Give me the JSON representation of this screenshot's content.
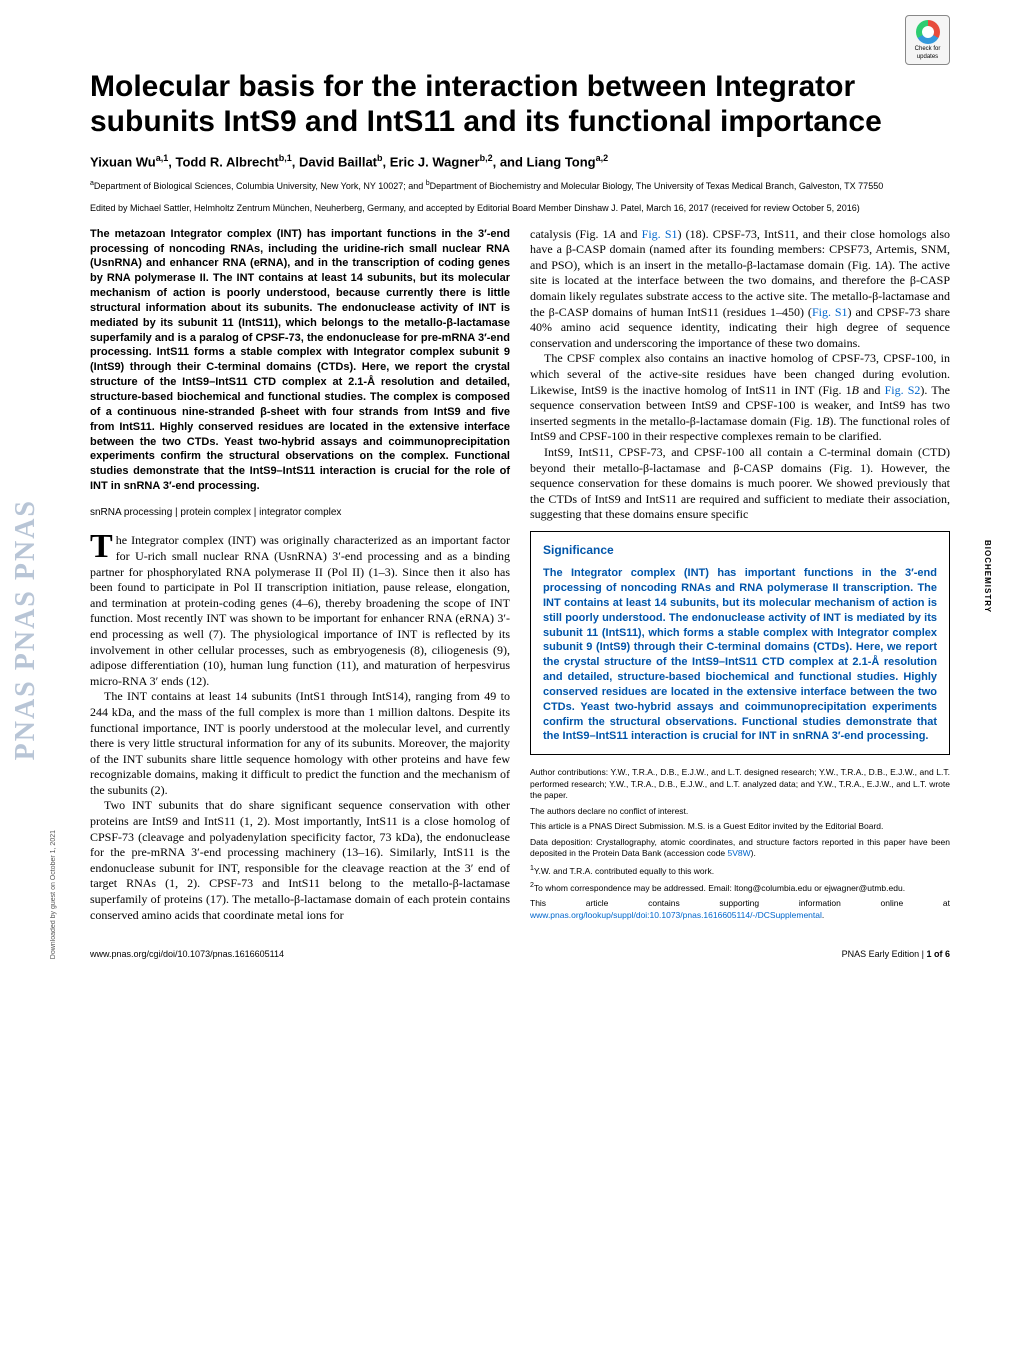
{
  "journal_strip": "PNAS  PNAS  PNAS",
  "check_updates": {
    "line1": "Check for",
    "line2": "updates"
  },
  "title": "Molecular basis for the interaction between Integrator subunits IntS9 and IntS11 and its functional importance",
  "authors_html": "Yixuan Wu<sup>a,1</sup>, Todd R. Albrecht<sup>b,1</sup>, David Baillat<sup>b</sup>, Eric J. Wagner<sup>b,2</sup>, and Liang Tong<sup>a,2</sup>",
  "affiliations_html": "<sup>a</sup>Department of Biological Sciences, Columbia University, New York, NY 10027; and <sup>b</sup>Department of Biochemistry and Molecular Biology, The University of Texas Medical Branch, Galveston, TX 77550",
  "edited": "Edited by Michael Sattler, Helmholtz Zentrum München, Neuherberg, Germany, and accepted by Editorial Board Member Dinshaw J. Patel, March 16, 2017 (received for review October 5, 2016)",
  "abstract": "The metazoan Integrator complex (INT) has important functions in the 3′-end processing of noncoding RNAs, including the uridine-rich small nuclear RNA (UsnRNA) and enhancer RNA (eRNA), and in the transcription of coding genes by RNA polymerase II. The INT contains at least 14 subunits, but its molecular mechanism of action is poorly understood, because currently there is little structural information about its subunits. The endonuclease activity of INT is mediated by its subunit 11 (IntS11), which belongs to the metallo-β-lactamase superfamily and is a paralog of CPSF-73, the endonuclease for pre-mRNA 3′-end processing. IntS11 forms a stable complex with Integrator complex subunit 9 (IntS9) through their C-terminal domains (CTDs). Here, we report the crystal structure of the IntS9–IntS11 CTD complex at 2.1-Å resolution and detailed, structure-based biochemical and functional studies. The complex is composed of a continuous nine-stranded β-sheet with four strands from IntS9 and five from IntS11. Highly conserved residues are located in the extensive interface between the two CTDs. Yeast two-hybrid assays and coimmunoprecipitation experiments confirm the structural observations on the complex. Functional studies demonstrate that the IntS9–IntS11 interaction is crucial for the role of INT in snRNA 3′-end processing.",
  "keywords": "snRNA processing | protein complex | integrator complex",
  "col1_body_p1_first": "T",
  "col1_body_p1": "he Integrator complex (INT) was originally characterized as an important factor for U-rich small nuclear RNA (UsnRNA) 3′-end processing and as a binding partner for phosphorylated RNA polymerase II (Pol II) (1–3). Since then it also has been found to participate in Pol II transcription initiation, pause release, elongation, and termination at protein-coding genes (4–6), thereby broadening the scope of INT function. Most recently INT was shown to be important for enhancer RNA (eRNA) 3′-end processing as well (7). The physiological importance of INT is reflected by its involvement in other cellular processes, such as embryogenesis (8), ciliogenesis (9), adipose differentiation (10), human lung function (11), and maturation of herpesvirus micro-RNA 3′ ends (12).",
  "col1_body_p2": "The INT contains at least 14 subunits (IntS1 through IntS14), ranging from 49 to 244 kDa, and the mass of the full complex is more than 1 million daltons. Despite its functional importance, INT is poorly understood at the molecular level, and currently there is very little structural information for any of its subunits. Moreover, the majority of the INT subunits share little sequence homology with other proteins and have few recognizable domains, making it difficult to predict the function and the mechanism of the subunits (2).",
  "col1_body_p3": "Two INT subunits that do share significant sequence conservation with other proteins are IntS9 and IntS11 (1, 2). Most importantly, IntS11 is a close homolog of CPSF-73 (cleavage and polyadenylation specificity factor, 73 kDa), the endonuclease for the pre-mRNA 3′-end processing machinery (13–16). Similarly, IntS11 is the endonuclease subunit for INT, responsible for the cleavage reaction at the 3′ end of target RNAs (1, 2). CPSF-73 and IntS11 belong to the metallo-β-lactamase superfamily of proteins (17). The metallo-β-lactamase domain of each protein contains conserved amino acids that coordinate metal ions for",
  "col2_body_p1_html": "catalysis (Fig. 1<i>A</i> and <span class='link'>Fig. S1</span>) (18). CPSF-73, IntS11, and their close homologs also have a β-CASP domain (named after its founding members: CPSF73, Artemis, SNM, and PSO), which is an insert in the metallo-β-lactamase domain (Fig. 1<i>A</i>). The active site is located at the interface between the two domains, and therefore the β-CASP domain likely regulates substrate access to the active site. The metallo-β-lactamase and the β-CASP domains of human IntS11 (residues 1–450) (<span class='link'>Fig. S1</span>) and CPSF-73 share 40% amino acid sequence identity, indicating their high degree of sequence conservation and underscoring the importance of these two domains.",
  "col2_body_p2_html": "The CPSF complex also contains an inactive homolog of CPSF-73, CPSF-100, in which several of the active-site residues have been changed during evolution. Likewise, IntS9 is the inactive homolog of IntS11 in INT (Fig. 1<i>B</i> and <span class='link'>Fig. S2</span>). The sequence conservation between IntS9 and CPSF-100 is weaker, and IntS9 has two inserted segments in the metallo-β-lactamase domain (Fig. 1<i>B</i>). The functional roles of IntS9 and CPSF-100 in their respective complexes remain to be clarified.",
  "col2_body_p3": "IntS9, IntS11, CPSF-73, and CPSF-100 all contain a C-terminal domain (CTD) beyond their metallo-β-lactamase and β-CASP domains (Fig. 1). However, the sequence conservation for these domains is much poorer. We showed previously that the CTDs of IntS9 and IntS11 are required and sufficient to mediate their association, suggesting that these domains ensure specific",
  "significance": {
    "head": "Significance",
    "body": "The Integrator complex (INT) has important functions in the 3′-end processing of noncoding RNAs and RNA polymerase II transcription. The INT contains at least 14 subunits, but its molecular mechanism of action is still poorly understood. The endonuclease activity of INT is mediated by its subunit 11 (IntS11), which forms a stable complex with Integrator complex subunit 9 (IntS9) through their C-terminal domains (CTDs). Here, we report the crystal structure of the IntS9–IntS11 CTD complex at 2.1-Å resolution and detailed, structure-based biochemical and functional studies. Highly conserved residues are located in the extensive interface between the two CTDs. Yeast two-hybrid assays and coimmunoprecipitation experiments confirm the structural observations. Functional studies demonstrate that the IntS9–IntS11 interaction is crucial for INT in snRNA 3′-end processing."
  },
  "footnotes": {
    "auth_contrib": "Author contributions: Y.W., T.R.A., D.B., E.J.W., and L.T. designed research; Y.W., T.R.A., D.B., E.J.W., and L.T. performed research; Y.W., T.R.A., D.B., E.J.W., and L.T. analyzed data; and Y.W., T.R.A., E.J.W., and L.T. wrote the paper.",
    "conflict": "The authors declare no conflict of interest.",
    "direct_sub": "This article is a PNAS Direct Submission. M.S. is a Guest Editor invited by the Editorial Board.",
    "data_dep_html": "Data deposition: Crystallography, atomic coordinates, and structure factors reported in this paper have been deposited in the Protein Data Bank (accession code <span class='link'>5V8W</span>).",
    "eq_contrib_html": "<sup>1</sup>Y.W. and T.R.A. contributed equally to this work.",
    "corresp_html": "<sup>2</sup>To whom correspondence may be addressed. Email: ltong@columbia.edu or ejwagner@utmb.edu.",
    "supp_html": "This article contains supporting information online at <span class='link'>www.pnas.org/lookup/suppl/doi:10.1073/pnas.1616605114/-/DCSupplemental</span>."
  },
  "footer": {
    "left": "www.pnas.org/cgi/doi/10.1073/pnas.1616605114",
    "right_html": "PNAS Early Edition | <b>1 of 6</b>"
  },
  "side_tab": "BIOCHEMISTRY",
  "dl_note": "Downloaded by guest on October 1, 2021",
  "styles": {
    "title_fontsize": 30,
    "body_fontsize": 12,
    "abstract_fontsize": 11,
    "footnote_fontsize": 8.5,
    "link_color": "#0066cc",
    "sig_color": "#0055aa",
    "page_bg": "#ffffff",
    "text_color": "#000000",
    "pnas_strip_color": "#b8c5d6"
  }
}
